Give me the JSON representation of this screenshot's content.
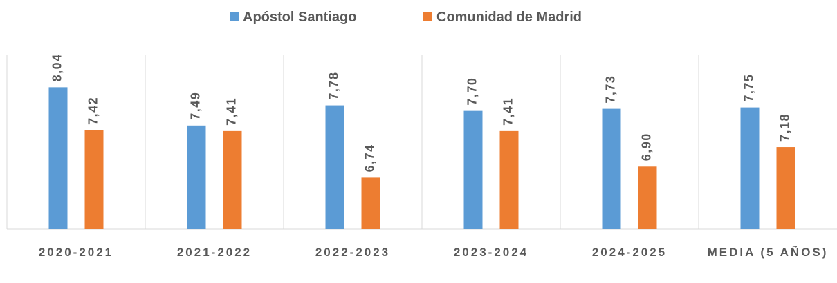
{
  "chart_data": {
    "type": "bar",
    "categories": [
      "2020-2021",
      "2021-2022",
      "2022-2023",
      "2023-2024",
      "2024-2025",
      "MEDIA (5 AÑOS)"
    ],
    "series": [
      {
        "name": "Apóstol Santiago",
        "color": "#5b9bd5",
        "values": [
          8.04,
          7.49,
          7.78,
          7.7,
          7.73,
          7.75
        ],
        "value_labels": [
          "8,04",
          "7,49",
          "7,78",
          "7,70",
          "7,73",
          "7,75"
        ]
      },
      {
        "name": "Comunidad de Madrid",
        "color": "#ed7d31",
        "values": [
          7.42,
          7.41,
          6.74,
          7.41,
          6.9,
          7.18
        ],
        "value_labels": [
          "7,42",
          "7,41",
          "6,74",
          "7,41",
          "6,90",
          "7,18"
        ]
      }
    ],
    "ylim": [
      6,
      8.5
    ],
    "legend": "top"
  }
}
